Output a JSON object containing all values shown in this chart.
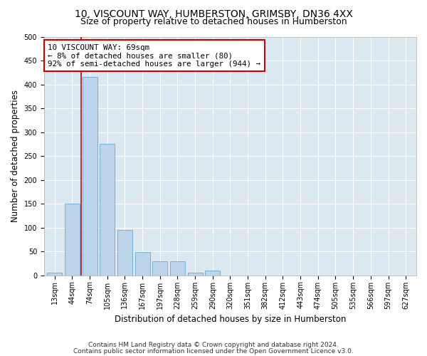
{
  "title": "10, VISCOUNT WAY, HUMBERSTON, GRIMSBY, DN36 4XX",
  "subtitle": "Size of property relative to detached houses in Humberston",
  "xlabel": "Distribution of detached houses by size in Humberston",
  "ylabel": "Number of detached properties",
  "footnote1": "Contains HM Land Registry data © Crown copyright and database right 2024.",
  "footnote2": "Contains public sector information licensed under the Open Government Licence v3.0.",
  "categories": [
    "13sqm",
    "44sqm",
    "74sqm",
    "105sqm",
    "136sqm",
    "167sqm",
    "197sqm",
    "228sqm",
    "259sqm",
    "290sqm",
    "320sqm",
    "351sqm",
    "382sqm",
    "412sqm",
    "443sqm",
    "474sqm",
    "505sqm",
    "535sqm",
    "566sqm",
    "597sqm",
    "627sqm"
  ],
  "values": [
    5,
    150,
    415,
    275,
    95,
    48,
    30,
    30,
    5,
    10,
    0,
    0,
    0,
    0,
    0,
    0,
    0,
    0,
    0,
    0,
    0
  ],
  "bar_color": "#bcd4ea",
  "bar_edge_color": "#6aaad4",
  "highlight_line_color": "#cc0000",
  "annotation_box_text": "10 VISCOUNT WAY: 69sqm\n← 8% of detached houses are smaller (80)\n92% of semi-detached houses are larger (944) →",
  "annotation_box_color": "#cc0000",
  "annotation_fill_color": "#ffffff",
  "ylim": [
    0,
    500
  ],
  "yticks": [
    0,
    50,
    100,
    150,
    200,
    250,
    300,
    350,
    400,
    450,
    500
  ],
  "background_color": "#dce8f0",
  "grid_color": "#ffffff",
  "fig_background": "#ffffff",
  "title_fontsize": 10,
  "subtitle_fontsize": 9,
  "label_fontsize": 8.5,
  "tick_fontsize": 7,
  "footnote_fontsize": 6.5,
  "annotation_fontsize": 7.8
}
